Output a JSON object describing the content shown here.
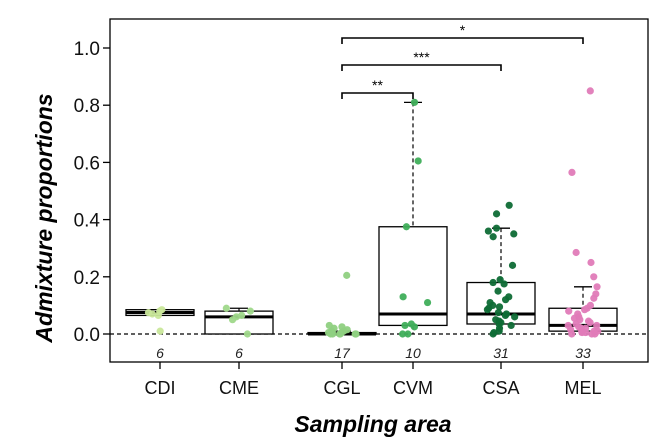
{
  "chart_data": {
    "type": "box",
    "xlabel": "Sampling area",
    "ylabel": "Admixture proportions",
    "ylim": [
      0,
      1.0
    ],
    "yticks": [
      "0.0",
      "0.2",
      "0.4",
      "0.6",
      "0.8",
      "1.0"
    ],
    "reference_line": 0,
    "categories": [
      {
        "name": "CDI",
        "n": "6",
        "color": "#c9e79a",
        "box": {
          "q1": 0.065,
          "median": 0.075,
          "q3": 0.085,
          "whisker_low": 0.065,
          "whisker_high": 0.085
        },
        "points": [
          0.08,
          0.085,
          0.075,
          0.07,
          0.065,
          0.01
        ]
      },
      {
        "name": "CME",
        "n": "6",
        "color": "#9fd88a",
        "box": {
          "q1": 0.0,
          "median": 0.06,
          "q3": 0.08,
          "whisker_low": 0.0,
          "whisker_high": 0.09
        },
        "points": [
          0.09,
          0.08,
          0.065,
          0.06,
          0.05,
          0.0
        ]
      },
      {
        "name": "CGL",
        "n": "17",
        "color": "#8fd081",
        "box": {
          "q1": 0.0,
          "median": 0.0,
          "q3": 0.005,
          "whisker_low": 0.0,
          "whisker_high": 0.01
        },
        "points": [
          0.205,
          0.03,
          0.025,
          0.02,
          0.015,
          0.01,
          0.01,
          0.005,
          0.005,
          0.005,
          0.0,
          0.0,
          0.0,
          0.0,
          0.0,
          0.0,
          0.0
        ]
      },
      {
        "name": "CVM",
        "n": "10",
        "color": "#3fae5a",
        "box": {
          "q1": 0.03,
          "median": 0.07,
          "q3": 0.375,
          "whisker_low": 0.0,
          "whisker_high": 0.81
        },
        "points": [
          0.81,
          0.605,
          0.375,
          0.13,
          0.11,
          0.035,
          0.03,
          0.025,
          0.0,
          0.0
        ]
      },
      {
        "name": "CSA",
        "n": "31",
        "color": "#0e6b35",
        "box": {
          "q1": 0.035,
          "median": 0.07,
          "q3": 0.18,
          "whisker_low": 0.0,
          "whisker_high": 0.37
        },
        "points": [
          0.45,
          0.42,
          0.37,
          0.36,
          0.35,
          0.34,
          0.24,
          0.19,
          0.18,
          0.175,
          0.15,
          0.13,
          0.12,
          0.11,
          0.1,
          0.095,
          0.09,
          0.085,
          0.075,
          0.07,
          0.065,
          0.06,
          0.05,
          0.045,
          0.04,
          0.035,
          0.03,
          0.02,
          0.01,
          0.005,
          0.0
        ]
      },
      {
        "name": "MEL",
        "n": "33",
        "color": "#e07bb8",
        "box": {
          "q1": 0.01,
          "median": 0.03,
          "q3": 0.09,
          "whisker_low": 0.0,
          "whisker_high": 0.165
        },
        "points": [
          0.85,
          0.565,
          0.285,
          0.25,
          0.2,
          0.165,
          0.14,
          0.125,
          0.1,
          0.09,
          0.085,
          0.08,
          0.07,
          0.06,
          0.055,
          0.05,
          0.045,
          0.04,
          0.035,
          0.03,
          0.03,
          0.025,
          0.02,
          0.02,
          0.015,
          0.01,
          0.01,
          0.01,
          0.005,
          0.005,
          0.0,
          0.0,
          0.0
        ]
      }
    ],
    "significance": [
      {
        "from": "CGL",
        "to": "MEL",
        "label": "*"
      },
      {
        "from": "CGL",
        "to": "CSA",
        "label": "***"
      },
      {
        "from": "CGL",
        "to": "CVM",
        "label": "**"
      }
    ]
  }
}
